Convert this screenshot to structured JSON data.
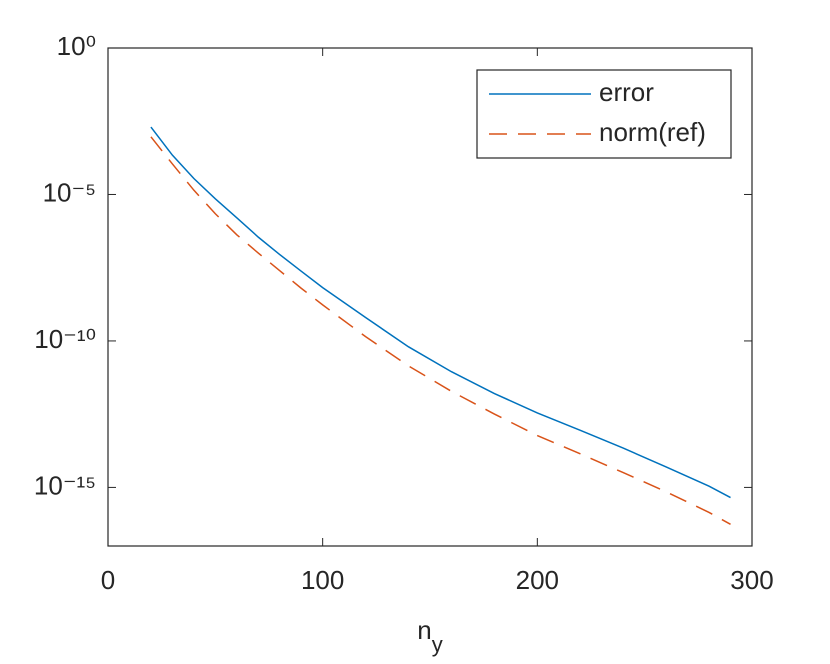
{
  "chart_data": {
    "type": "line",
    "xlabel": {
      "text": "n",
      "subscript": "y"
    },
    "x": [
      20,
      30,
      40,
      50,
      60,
      70,
      80,
      90,
      100,
      120,
      140,
      160,
      180,
      200,
      220,
      240,
      260,
      280,
      290
    ],
    "series": [
      {
        "name": "error",
        "color": "#0072bd",
        "dash": "solid",
        "values": [
          0.002,
          0.00022,
          3.5e-05,
          7.1e-06,
          1.6e-06,
          3.5e-07,
          8.9e-08,
          2.4e-08,
          6.6e-09,
          6.3e-10,
          6.3e-11,
          8.9e-12,
          1.6e-12,
          3.5e-13,
          8.9e-14,
          2.2e-14,
          5e-15,
          1.1e-15,
          4.5e-16
        ]
      },
      {
        "name": "norm(ref)",
        "color": "#d95319",
        "dash": "dashed",
        "values": [
          0.00093,
          0.00011,
          1.4e-05,
          2.2e-06,
          4.2e-07,
          1e-07,
          2.5e-08,
          6.3e-09,
          1.7e-09,
          1.4e-10,
          1.4e-11,
          1.9e-12,
          3.2e-13,
          5.9e-14,
          1.4e-14,
          3.2e-15,
          7.1e-16,
          1.4e-16,
          5.5e-17
        ]
      }
    ],
    "xlim": [
      0,
      300
    ],
    "xticks": [
      0,
      100,
      200,
      300
    ],
    "ylim": [
      1e-17,
      1
    ],
    "yscale": "log",
    "yticks": [
      {
        "value": 1e-15,
        "label": "10⁻¹⁵"
      },
      {
        "value": 1e-10,
        "label": "10⁻¹⁰"
      },
      {
        "value": 1e-05,
        "label": "10⁻⁵"
      },
      {
        "value": 1,
        "label": "10⁰"
      }
    ],
    "grid": false,
    "legend": "upper right"
  }
}
